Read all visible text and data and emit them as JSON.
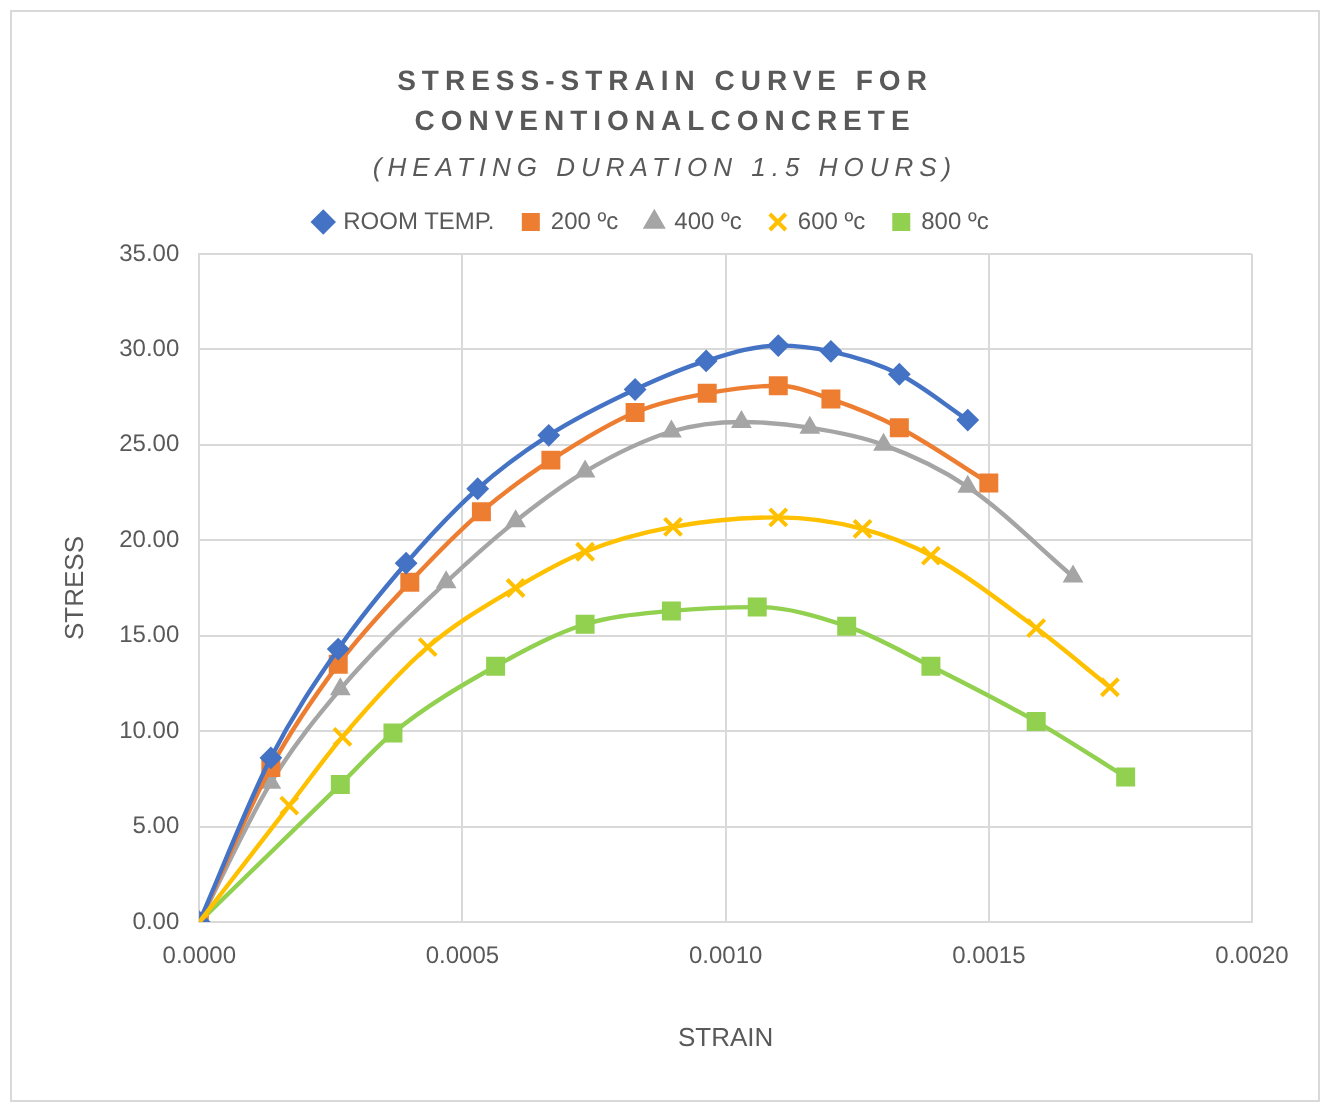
{
  "chart_data": {
    "type": "line",
    "title": "STRESS-STRAIN CURVE FOR CONVENTIONALCONCRETE",
    "subtitle": "(HEATING DURATION 1.5 HOURS)",
    "xlabel": "STRAIN",
    "ylabel": "STRESS",
    "xlim": [
      0,
      0.002
    ],
    "xticks": [
      {
        "value": 0,
        "label": "0.0000"
      },
      {
        "value": 0.0005,
        "label": "0.0005"
      },
      {
        "value": 0.001,
        "label": "0.0010"
      },
      {
        "value": 0.0015,
        "label": "0.0015"
      },
      {
        "value": 0.002,
        "label": "0.0020"
      }
    ],
    "ylim": [
      0,
      35
    ],
    "yticks": [
      {
        "value": 0,
        "label": "0.00"
      },
      {
        "value": 5,
        "label": "5.00"
      },
      {
        "value": 10,
        "label": "10.00"
      },
      {
        "value": 15,
        "label": "15.00"
      },
      {
        "value": 20,
        "label": "20.00"
      },
      {
        "value": 25,
        "label": "25.00"
      },
      {
        "value": 30,
        "label": "30.00"
      },
      {
        "value": 35,
        "label": "35.00"
      }
    ],
    "grid": true,
    "legend": "top",
    "line_style": "solid",
    "series": [
      {
        "name": "ROOM TEMP.",
        "color": "#4472c4",
        "marker": "diamond",
        "x": [
          0,
          0.000136,
          0.000264,
          0.000393,
          0.000529,
          0.000664,
          0.000828,
          0.000963,
          0.0011,
          0.0012,
          0.00133,
          0.00146
        ],
        "values": [
          0,
          8.6,
          14.3,
          18.8,
          22.7,
          25.5,
          27.9,
          29.4,
          30.2,
          29.9,
          28.7,
          26.3
        ]
      },
      {
        "name": "200 ºc",
        "color": "#ed7d31",
        "marker": "square",
        "x": [
          0,
          0.000136,
          0.000264,
          0.0004,
          0.000536,
          0.000668,
          0.000828,
          0.000965,
          0.0011,
          0.0012,
          0.00133,
          0.0015
        ],
        "values": [
          0,
          8.1,
          13.5,
          17.8,
          21.5,
          24.2,
          26.7,
          27.7,
          28.1,
          27.4,
          25.9,
          23.0
        ]
      },
      {
        "name": "400 ºc",
        "color": "#a5a5a5",
        "marker": "triangle",
        "x": [
          0,
          0.000136,
          0.000268,
          0.000469,
          0.000601,
          0.000733,
          0.000897,
          0.00103,
          0.00116,
          0.0013,
          0.00146,
          0.00166
        ],
        "values": [
          0,
          7.3,
          12.2,
          17.8,
          21.0,
          23.6,
          25.7,
          26.2,
          25.9,
          25.0,
          22.8,
          18.1
        ]
      },
      {
        "name": "600 ºc",
        "color": "#ffc000",
        "marker": "cross",
        "x": [
          0,
          0.000171,
          0.000272,
          0.000434,
          0.000601,
          0.000733,
          0.0009,
          0.0011,
          0.00126,
          0.00139,
          0.00159,
          0.00173
        ],
        "values": [
          0,
          6.1,
          9.7,
          14.4,
          17.5,
          19.4,
          20.7,
          21.2,
          20.6,
          19.2,
          15.4,
          12.3
        ]
      },
      {
        "name": "800 ºc",
        "color": "#92d050",
        "marker": "square",
        "x": [
          0,
          0.000268,
          0.000368,
          0.000563,
          0.000733,
          0.000897,
          0.00106,
          0.00123,
          0.00139,
          0.00159,
          0.00176
        ],
        "values": [
          0,
          7.2,
          9.9,
          13.4,
          15.6,
          16.3,
          16.5,
          15.5,
          13.4,
          10.5,
          7.6
        ]
      }
    ]
  }
}
